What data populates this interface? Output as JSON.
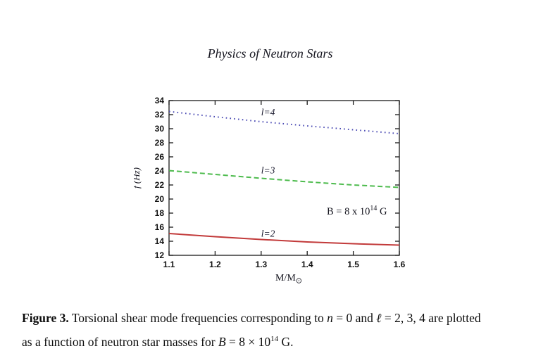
{
  "page": {
    "title": "Physics of Neutron Stars"
  },
  "chart": {
    "annotation": {
      "part1": "B = 8 x 10",
      "sup": "14",
      "part2": " G"
    }
  },
  "chart_data": {
    "type": "line",
    "title": "",
    "xlabel": "M/M⊙",
    "xlabel_main": "M/M",
    "xlabel_sub": "⊙",
    "ylabel": "f (Hz)",
    "xlim": [
      1.1,
      1.6
    ],
    "ylim": [
      12,
      34
    ],
    "x_ticks": [
      1.1,
      1.2,
      1.3,
      1.4,
      1.5,
      1.6
    ],
    "y_ticks": [
      12,
      14,
      16,
      18,
      20,
      22,
      24,
      26,
      28,
      30,
      32,
      34
    ],
    "grid": false,
    "legend_position": "none",
    "annotation": "B = 8 x 10^14 G",
    "x": [
      1.1,
      1.2,
      1.3,
      1.4,
      1.5,
      1.6
    ],
    "series": [
      {
        "name": "l=4",
        "style": "dotted",
        "color": "#4b4bb4",
        "values": [
          32.45,
          31.7,
          31.0,
          30.4,
          29.85,
          29.3
        ],
        "label_x": 1.315,
        "label_y": 32.3
      },
      {
        "name": "l=3",
        "style": "dashed",
        "color": "#4dbb4d",
        "values": [
          24.05,
          23.5,
          22.95,
          22.45,
          22.0,
          21.65
        ],
        "label_x": 1.315,
        "label_y": 24.05
      },
      {
        "name": "l=2",
        "style": "solid",
        "color": "#c23a3a",
        "values": [
          15.1,
          14.65,
          14.25,
          13.9,
          13.65,
          13.45
        ],
        "label_x": 1.315,
        "label_y": 15.05
      }
    ]
  },
  "caption": {
    "label": "Figure 3.",
    "line1_seg1": " Torsional shear mode frequencies corresponding to ",
    "line1_var1": "n",
    "line1_seg2": " = 0 and ",
    "line1_var2": "ℓ",
    "line1_seg3": " = 2, 3, 4 are plotted",
    "line2_seg1": "as a function of neutron star masses for ",
    "line2_var1": "B",
    "line2_seg2": " = 8 × 10",
    "line2_sup": "14",
    "line2_seg3": " G."
  }
}
